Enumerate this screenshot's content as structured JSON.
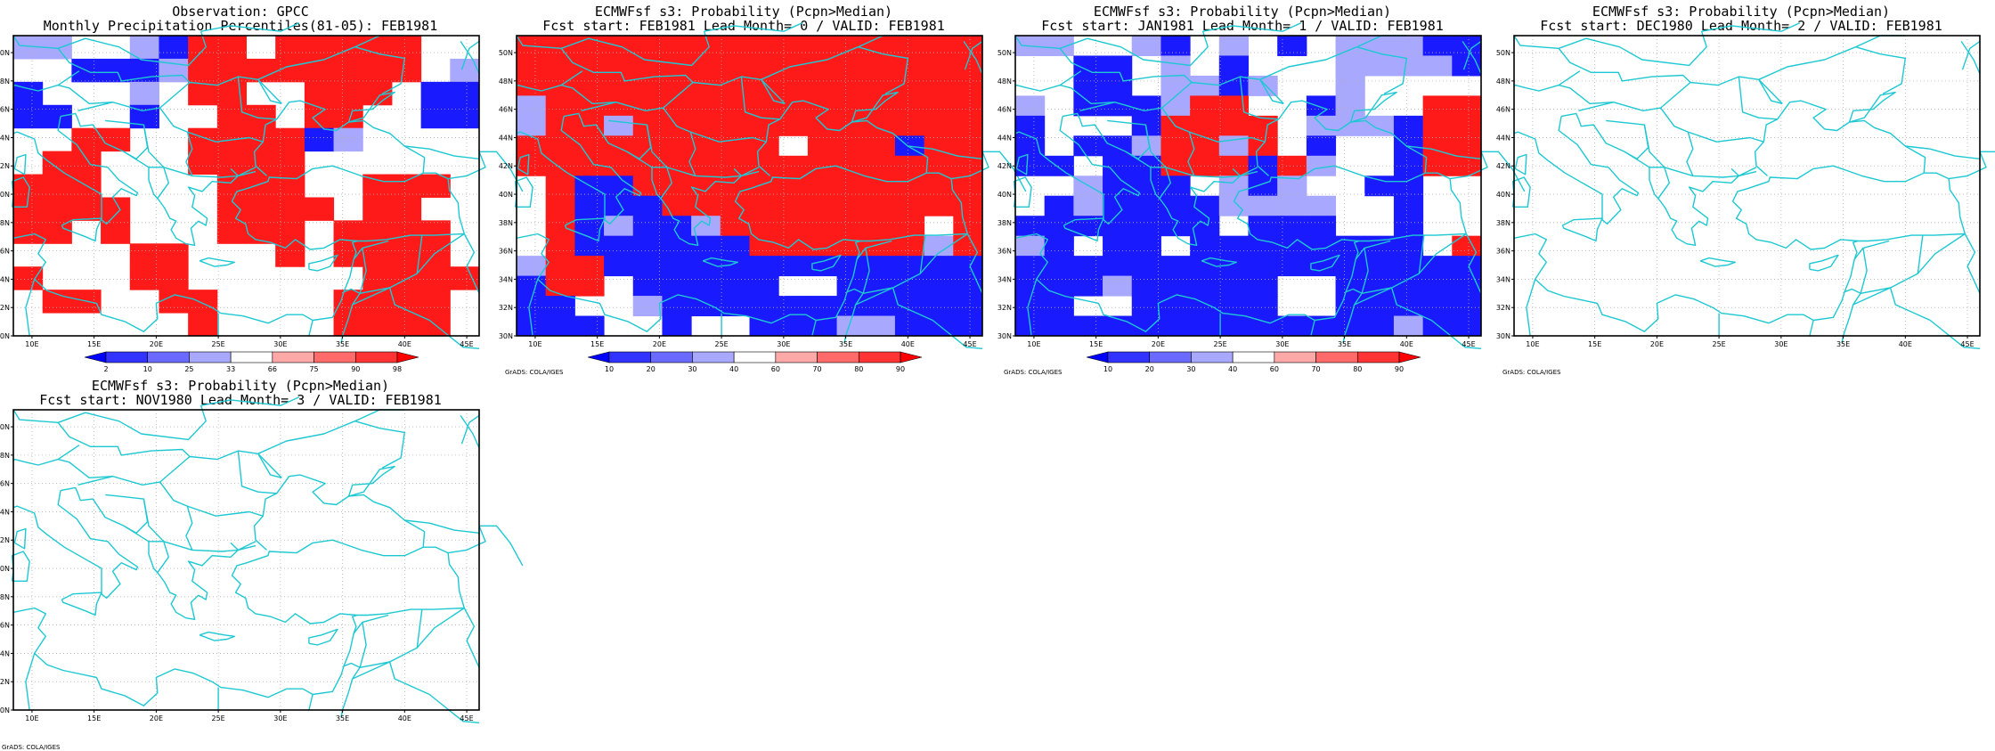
{
  "lon_ticks": [
    "10E",
    "15E",
    "20E",
    "25E",
    "30E",
    "35E",
    "40E",
    "45E"
  ],
  "lat_ticks": [
    "30N",
    "32N",
    "34N",
    "36N",
    "38N",
    "40N",
    "42N",
    "44N",
    "46N",
    "48N",
    "50N"
  ],
  "credit": "GrADS: COLA/IGES",
  "colorbars": {
    "obs": {
      "labels": [
        "2",
        "10",
        "25",
        "33",
        "66",
        "75",
        "90",
        "98"
      ],
      "colors": [
        "#0000ff",
        "#3333ff",
        "#6a6aff",
        "#a8a8ff",
        "#ffffff",
        "#ffa8a8",
        "#ff6a6a",
        "#ff3333",
        "#ff0000"
      ]
    },
    "prob": {
      "labels": [
        "10",
        "20",
        "30",
        "40",
        "60",
        "70",
        "80",
        "90"
      ],
      "colors": [
        "#0000ff",
        "#3333ff",
        "#6a6aff",
        "#a8a8ff",
        "#ffffff",
        "#ffa8a8",
        "#ff6a6a",
        "#ff3333",
        "#ff0000"
      ]
    }
  },
  "panels": [
    {
      "id": "obs-gpcc",
      "title_line1": "Observation: GPCC",
      "title_line2": "Monthly Precipitation Percentiles(81-05): FEB1981",
      "colorbar": "obs",
      "show_credit": false,
      "grid": [
        "LLWWLBRRWRRRRRWW",
        "WWBBBLRRRRRRRRWL",
        "BWWWLWRRWWRRRWBB",
        "BBWWBWWRRWRRWWBB",
        "WWRRWWRRRRBLWWWW",
        "WRRWWWRRRRWWWWWW",
        "RRRWWWWRRRWWRRRW",
        "RRRRWWWRRRRWRRWW",
        "RRWRWWWRRRWRRRRW",
        "WWWWRRWWWRWRRRRW",
        "RWWWRRWWWWWWRRRR",
        "WRRWWRRWWWWRRRRW",
        "WWWWWWRWWWWRRRRW"
      ]
    },
    {
      "id": "ecmwf-lead0",
      "title_line1": "ECMWFsf s3: Probability (Pcpn>Median)",
      "title_line2": "Fcst start: FEB1981  Lead Month= 0 / VALID: FEB1981",
      "colorbar": "prob",
      "show_credit": true,
      "grid": [
        "RRRRRRRRRRRRRRRR",
        "RRRRRRRRRRRRRRRR",
        "RRRRRRRRRRRRRRRR",
        "LRRRRRRRRRRRRRRR",
        "LRRLRRRRRRRRRRRR",
        "RRRRRRRRRWRRRBRR",
        "RRRRRRRRRRRRRRRR",
        "WRBBRRRRRRRRRRRR",
        "WRBBBRRRRRRRRRRR",
        "WRBLBBLRRRRRRRWR",
        "WRBBBBBBRRRRRRLR",
        "LRRBBBBBBBBBBBBB",
        "BRRWBBBBBWWBBBBB",
        "BBWWLBBBBBBBBBBB",
        "BBBWWBWWBBBLLBBB"
      ]
    },
    {
      "id": "ecmwf-lead1",
      "title_line1": "ECMWFsf s3: Probability (Pcpn>Median)",
      "title_line2": "Fcst start: JAN1981  Lead Month= 1 / VALID: FEB1981",
      "colorbar": "prob",
      "show_credit": true,
      "grid": [
        "LLWWLBWLWBWLLLBB",
        "WWBBWLWBWWWLLLLB",
        "WWBBWLLBLWWLWWWW",
        "LWBBBLRRWWBLWWRR",
        "BWWWBRRRRWLLLBRR",
        "BWBBLRRLRWBWWBRR",
        "BBWBBRRRBRLWWBRR",
        "WWLBBBWLBLWWBBWW",
        "WBLBBBBLLLLWWBWW",
        "BBBBBBBWBBBWWBWW",
        "LBWBBWBBBBBBBBWR",
        "BBBBBBBBBBBBBBBB",
        "BBBLBBBBBWWBBBBB",
        "BBWWBBBBBWWBBBBB",
        "BBBBBBBBBBBBBLBB"
      ]
    },
    {
      "id": "ecmwf-lead2",
      "title_line1": "ECMWFsf s3: Probability (Pcpn>Median)",
      "title_line2": "Fcst start: DEC1980  Lead Month= 2 / VALID: FEB1981",
      "colorbar": "none",
      "show_credit": true,
      "grid": []
    },
    {
      "id": "ecmwf-lead3",
      "title_line1": "ECMWFsf s3: Probability (Pcpn>Median)",
      "title_line2": "Fcst start: NOV1980  Lead Month= 3 / VALID: FEB1981",
      "colorbar": "none",
      "show_credit": true,
      "grid": []
    }
  ],
  "cell_colors": {
    "R": "#ff1a1a",
    "r": "#ff6a6a",
    "L": "#a8a8ff",
    "B": "#1a1aff",
    "W": "#ffffff"
  },
  "coast_color": "#1ec8d2",
  "grid_color": "#b4b4b4"
}
